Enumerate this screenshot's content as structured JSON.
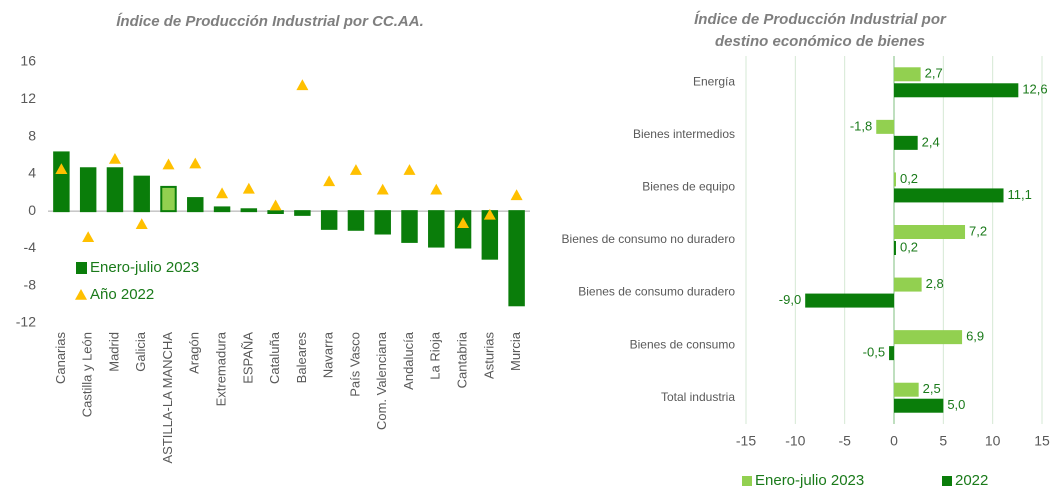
{
  "chart_data": [
    {
      "type": "combo",
      "title": "Índice de Producción Industrial por CC.AA.",
      "categories": [
        "Canarias",
        "Castilla y León",
        "Madrid",
        "Galicia",
        "ASTILLA-LA MANCHA",
        "Aragón",
        "Extremadura",
        "ESPAÑA",
        "Cataluña",
        "Baleares",
        "Navarra",
        "País Vasco",
        "Com. Valenciana",
        "Andalucía",
        "La Rioja",
        "Cantabria",
        "Asturias",
        "Murcia"
      ],
      "series": [
        {
          "name": "Enero-julio 2023",
          "type": "bar",
          "color": "#0a7d0a",
          "colors": [
            "#0a7d0a",
            "#0a7d0a",
            "#0a7d0a",
            "#0a7d0a",
            "#92d050",
            "#0a7d0a",
            "#0a7d0a",
            "#0a7d0a",
            "#0a7d0a",
            "#0a7d0a",
            "#0a7d0a",
            "#0a7d0a",
            "#0a7d0a",
            "#0a7d0a",
            "#0a7d0a",
            "#0a7d0a",
            "#0a7d0a",
            "#0a7d0a"
          ],
          "values": [
            6.3,
            4.6,
            4.6,
            3.7,
            2.6,
            1.4,
            0.4,
            0.2,
            -0.2,
            -0.4,
            -1.9,
            -2.0,
            -2.4,
            -3.3,
            -3.8,
            -3.9,
            -5.1,
            -10.1
          ]
        },
        {
          "name": "Año 2022",
          "type": "scatter",
          "marker": "triangle",
          "color": "#ffc000",
          "values": [
            4.5,
            -2.8,
            5.6,
            -1.4,
            5.0,
            5.1,
            1.9,
            2.4,
            0.6,
            13.5,
            3.2,
            4.4,
            2.3,
            4.4,
            2.3,
            -1.3,
            -0.4,
            1.7
          ]
        }
      ],
      "ylim": [
        -12,
        16
      ],
      "yticks": [
        -12,
        -8,
        -4,
        0,
        4,
        8,
        12,
        16
      ],
      "legend": "lower left"
    },
    {
      "type": "hbar",
      "title": "Índice de Producción Industrial por destino económico de bienes",
      "categories": [
        "Energía",
        "Bienes intermedios",
        "Bienes de equipo",
        "Bienes de consumo no duradero",
        "Bienes de consumo duradero",
        "Bienes de consumo",
        "Total industria"
      ],
      "series": [
        {
          "name": "Enero-julio 2023",
          "color": "#92d050",
          "values": [
            2.7,
            -1.8,
            0.2,
            7.2,
            2.8,
            6.9,
            2.5
          ],
          "value_labels": [
            "2,7",
            "-1,8",
            "0,2",
            "7,2",
            "2,8",
            "6,9",
            "2,5"
          ]
        },
        {
          "name": "2022",
          "color": "#0a7d0a",
          "values": [
            12.6,
            2.4,
            11.1,
            0.2,
            -9.0,
            -0.5,
            5.0
          ],
          "value_labels": [
            "12,6",
            "2,4",
            "11,1",
            "0,2",
            "-9,0",
            "-0,5",
            "5,0"
          ]
        }
      ],
      "xlim": [
        -15,
        15
      ],
      "xticks": [
        -15,
        -10,
        -5,
        0,
        5,
        10,
        15
      ],
      "grid": true,
      "legend": "bottom"
    }
  ]
}
